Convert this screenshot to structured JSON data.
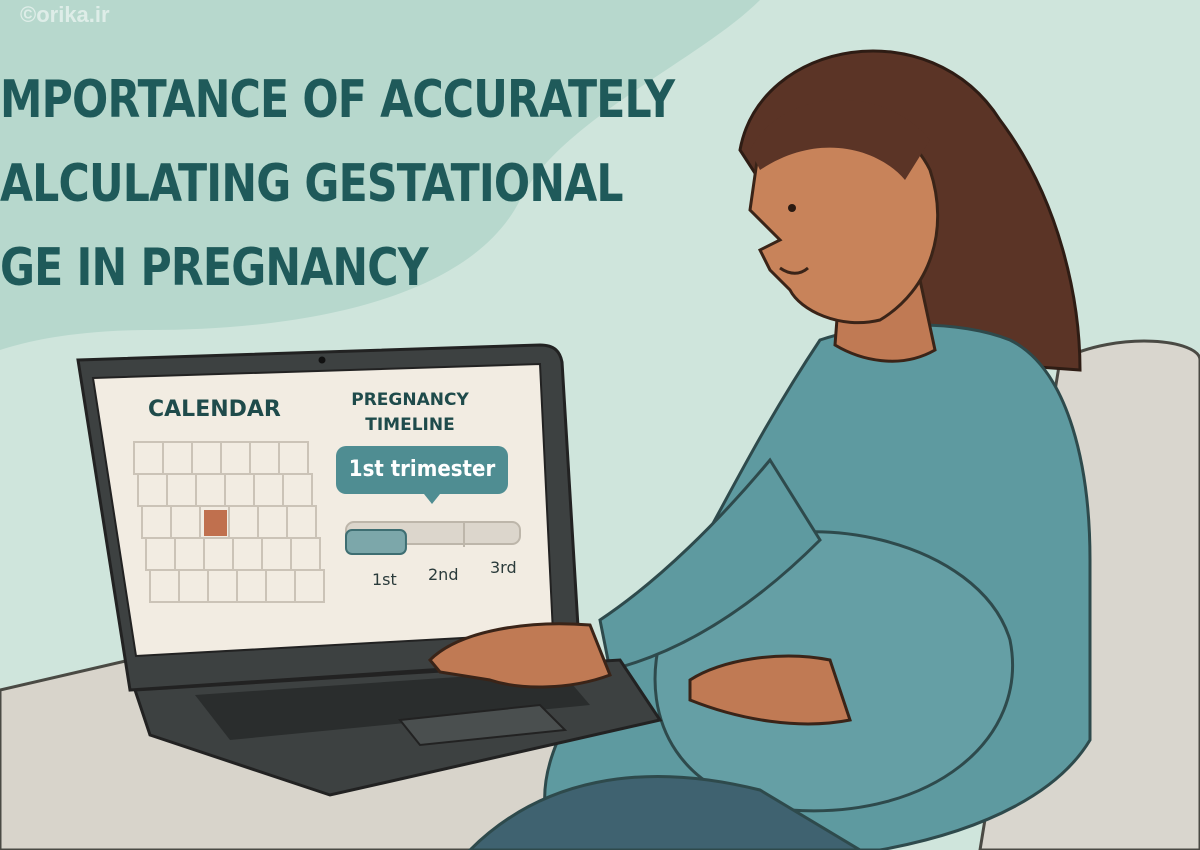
{
  "watermark": "©orika.ir",
  "title": {
    "lines": [
      "MPORTANCE OF ACCURATELY",
      "ALCULATING GESTATIONAL",
      "GE IN PREGNANCY"
    ],
    "color": "#1f5a5a"
  },
  "laptop_screen": {
    "calendar": {
      "title": "CALENDAR",
      "columns": 6,
      "rows": 5,
      "highlighted_cell": {
        "row": 3,
        "column": 3
      },
      "highlight_color": "#c0704e"
    },
    "timeline": {
      "title_line1": "PREGNANCY",
      "title_line2": "TIMELINE",
      "bubble_label": "1st trimester",
      "progress_fraction": 0.333,
      "segments": [
        "1st",
        "2nd",
        "3rd"
      ],
      "accent_color": "#4f8d92"
    }
  }
}
